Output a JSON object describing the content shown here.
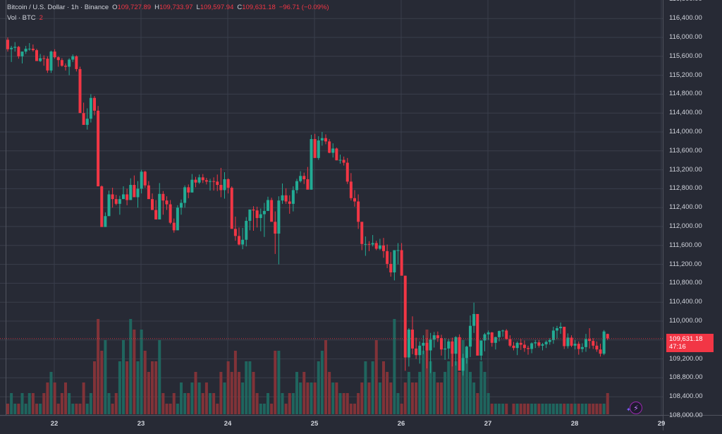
{
  "legend": {
    "symbol": "Bitcoin / U.S. Dollar · 1h · Binance",
    "open_label": "O",
    "open": "109,727.89",
    "high_label": "H",
    "high": "109,733.97",
    "low_label": "L",
    "low": "109,597.94",
    "close_label": "C",
    "close": "109,631.18",
    "change": "−96.71 (−0.09%)",
    "volume_label": "Vol · BTC",
    "volume": "2"
  },
  "price_tag": {
    "price": "109,631.18",
    "countdown": "47:16"
  },
  "colors": {
    "background": "#272a35",
    "grid": "#3a3e4b",
    "up": "#22ab94",
    "down": "#f23645",
    "up_vol": "#1f6b63",
    "down_vol": "#8c3439",
    "axis_text": "#d1d4dc",
    "last_price_line": "#f23645"
  },
  "chart_data": {
    "type": "candlestick",
    "title": "Bitcoin / U.S. Dollar · 1h · Binance",
    "xlabel": "",
    "ylabel": "",
    "y_axis_ticks": [
      "116,800.00",
      "116,400.00",
      "116,000.00",
      "115,600.00",
      "115,200.00",
      "114,800.00",
      "114,400.00",
      "114,000.00",
      "113,600.00",
      "113,200.00",
      "112,800.00",
      "112,400.00",
      "112,000.00",
      "111,600.00",
      "111,200.00",
      "110,800.00",
      "110,400.00",
      "110,000.00",
      "109,200.00",
      "108,800.00",
      "108,400.00",
      "108,000.00"
    ],
    "y_tick_values": [
      116800,
      116400,
      116000,
      115600,
      115200,
      114800,
      114400,
      114000,
      113600,
      113200,
      112800,
      112400,
      112000,
      111600,
      111200,
      110800,
      110400,
      110000,
      109600,
      109200,
      108800,
      108400,
      108000
    ],
    "x_axis_ticks": [
      "22",
      "23",
      "24",
      "25",
      "26",
      "27",
      "28",
      "29"
    ],
    "ylim": [
      108000,
      116800
    ],
    "grid": true,
    "last_price": 109631.18,
    "ohlc_hourly": [
      [
        115950,
        116000,
        115700,
        115750
      ],
      [
        115750,
        115820,
        115480,
        115780
      ],
      [
        115780,
        115900,
        115700,
        115800
      ],
      [
        115800,
        115820,
        115550,
        115600
      ],
      [
        115600,
        115700,
        115450,
        115700
      ],
      [
        115700,
        115820,
        115650,
        115760
      ],
      [
        115760,
        115880,
        115720,
        115760
      ],
      [
        115760,
        115850,
        115700,
        115730
      ],
      [
        115730,
        115760,
        115500,
        115500
      ],
      [
        115500,
        115650,
        115480,
        115560
      ],
      [
        115560,
        115620,
        115400,
        115550
      ],
      [
        115550,
        115600,
        115250,
        115300
      ],
      [
        115300,
        115720,
        115250,
        115700
      ],
      [
        115700,
        115750,
        115550,
        115580
      ],
      [
        115580,
        115600,
        115380,
        115520
      ],
      [
        115520,
        115560,
        115380,
        115400
      ],
      [
        115400,
        115450,
        115300,
        115380
      ],
      [
        115380,
        115560,
        115200,
        115530
      ],
      [
        115530,
        115640,
        115480,
        115600
      ],
      [
        115600,
        115620,
        115280,
        115330
      ],
      [
        115330,
        115380,
        114450,
        114400
      ],
      [
        114400,
        114620,
        114200,
        114150
      ],
      [
        114150,
        114500,
        114050,
        114280
      ],
      [
        114280,
        114800,
        114200,
        114720
      ],
      [
        114720,
        114760,
        114350,
        114450
      ],
      [
        114450,
        114550,
        112950,
        112850
      ],
      [
        112850,
        112870,
        112030,
        111990
      ],
      [
        111990,
        112300,
        112000,
        112220
      ],
      [
        112220,
        112760,
        112350,
        112680
      ],
      [
        112680,
        112820,
        112400,
        112580
      ],
      [
        112580,
        112670,
        112450,
        112480
      ],
      [
        112480,
        112650,
        112250,
        112580
      ],
      [
        112580,
        112850,
        112600,
        112680
      ],
      [
        112680,
        112800,
        112450,
        112560
      ],
      [
        112560,
        113020,
        112620,
        112880
      ],
      [
        112880,
        113080,
        112700,
        112620
      ],
      [
        112620,
        112960,
        112400,
        112800
      ],
      [
        112800,
        113200,
        112700,
        113160
      ],
      [
        113160,
        113180,
        112820,
        112870
      ],
      [
        112870,
        112960,
        112700,
        112580
      ],
      [
        112580,
        112700,
        112380,
        112350
      ],
      [
        112350,
        112560,
        112150,
        112150
      ],
      [
        112150,
        112920,
        112200,
        112690
      ],
      [
        112690,
        112750,
        112250,
        112550
      ],
      [
        112550,
        112640,
        112350,
        112470
      ],
      [
        112470,
        112560,
        112050,
        112080
      ],
      [
        112080,
        112170,
        111870,
        111920
      ],
      [
        111920,
        112450,
        111950,
        112400
      ],
      [
        112400,
        112570,
        112250,
        112500
      ],
      [
        112500,
        112870,
        112400,
        112830
      ],
      [
        112830,
        112890,
        112600,
        112720
      ],
      [
        112720,
        113110,
        112720,
        112990
      ],
      [
        112990,
        113050,
        112830,
        112930
      ],
      [
        112930,
        113100,
        112900,
        113040
      ],
      [
        113040,
        113110,
        112920,
        112980
      ],
      [
        112980,
        113030,
        112890,
        112950
      ],
      [
        112950,
        113010,
        112760,
        112960
      ],
      [
        112960,
        113040,
        112760,
        112950
      ],
      [
        112950,
        113100,
        112750,
        112880
      ],
      [
        112880,
        113240,
        112620,
        112770
      ],
      [
        112770,
        113150,
        112590,
        113000
      ],
      [
        113000,
        113020,
        112700,
        112820
      ],
      [
        112820,
        112850,
        111990,
        111950
      ],
      [
        111950,
        112210,
        111700,
        111800
      ],
      [
        111800,
        111980,
        111600,
        111620
      ],
      [
        111620,
        111970,
        111520,
        111720
      ],
      [
        111720,
        112200,
        111580,
        112120
      ],
      [
        112120,
        112350,
        111920,
        112360
      ],
      [
        112360,
        112430,
        111910,
        112340
      ],
      [
        112340,
        112420,
        111980,
        112180
      ],
      [
        112180,
        112380,
        111900,
        112260
      ],
      [
        112260,
        112500,
        111780,
        112330
      ],
      [
        112330,
        112630,
        112340,
        112560
      ],
      [
        112560,
        112610,
        112120,
        112100
      ],
      [
        112100,
        112320,
        111420,
        111850
      ],
      [
        111850,
        112640,
        111200,
        112550
      ],
      [
        112550,
        112910,
        112480,
        112660
      ],
      [
        112660,
        112810,
        112480,
        112530
      ],
      [
        112530,
        112660,
        112270,
        112480
      ],
      [
        112480,
        112850,
        112320,
        112770
      ],
      [
        112770,
        113010,
        112700,
        112960
      ],
      [
        112960,
        113170,
        112930,
        113070
      ],
      [
        113070,
        113140,
        112900,
        113000
      ],
      [
        113000,
        113260,
        112920,
        112780
      ],
      [
        112780,
        113940,
        112780,
        113850
      ],
      [
        113850,
        113960,
        113480,
        113450
      ],
      [
        113450,
        113910,
        113410,
        113820
      ],
      [
        113820,
        114000,
        113710,
        113870
      ],
      [
        113870,
        113950,
        113740,
        113800
      ],
      [
        113800,
        113850,
        113550,
        113560
      ],
      [
        113560,
        113760,
        113460,
        113650
      ],
      [
        113650,
        113670,
        113400,
        113400
      ],
      [
        113400,
        113520,
        113330,
        113410
      ],
      [
        113410,
        113480,
        113290,
        113350
      ],
      [
        113350,
        113450,
        112900,
        112950
      ],
      [
        112950,
        113130,
        112550,
        112600
      ],
      [
        112600,
        112770,
        112420,
        112530
      ],
      [
        112530,
        112680,
        111950,
        112100
      ],
      [
        112100,
        112050,
        111500,
        111630
      ],
      [
        111630,
        111790,
        111380,
        111630
      ],
      [
        111630,
        111690,
        111480,
        111620
      ],
      [
        111620,
        111820,
        111580,
        111650
      ],
      [
        111650,
        111700,
        111500,
        111530
      ],
      [
        111530,
        111740,
        111500,
        111600
      ],
      [
        111600,
        111760,
        111340,
        111480
      ],
      [
        111480,
        111620,
        111120,
        111210
      ],
      [
        111210,
        111460,
        110940,
        111030
      ],
      [
        111030,
        111460,
        110860,
        111500
      ],
      [
        111500,
        111650,
        111200,
        111500
      ],
      [
        111500,
        111650,
        111330,
        110960
      ],
      [
        110960,
        110960,
        108950,
        109230
      ],
      [
        109230,
        109850,
        109040,
        109820
      ],
      [
        109820,
        110100,
        109300,
        109420
      ],
      [
        109420,
        109650,
        109200,
        109280
      ],
      [
        109280,
        109570,
        109100,
        109480
      ],
      [
        109480,
        109700,
        109300,
        109540
      ],
      [
        109540,
        109640,
        109000,
        109380
      ],
      [
        109380,
        109750,
        108900,
        109610
      ],
      [
        109610,
        109770,
        109440,
        109700
      ],
      [
        109700,
        109780,
        109560,
        109640
      ],
      [
        109640,
        109710,
        109270,
        109400
      ],
      [
        109400,
        109640,
        109180,
        109420
      ],
      [
        109420,
        109620,
        109200,
        109570
      ],
      [
        109570,
        109650,
        109040,
        109310
      ],
      [
        109310,
        109680,
        109060,
        109660
      ],
      [
        109660,
        109720,
        109160,
        108950
      ],
      [
        108950,
        109310,
        108850,
        109220
      ],
      [
        109220,
        109480,
        109100,
        109460
      ],
      [
        109460,
        110120,
        109240,
        109900
      ],
      [
        109900,
        110390,
        109750,
        110150
      ],
      [
        110150,
        110100,
        109530,
        109270
      ],
      [
        109270,
        109500,
        109170,
        109590
      ],
      [
        109590,
        109750,
        109360,
        109720
      ],
      [
        109720,
        109800,
        109600,
        109760
      ],
      [
        109760,
        109770,
        109460,
        109540
      ],
      [
        109540,
        109670,
        109400,
        109660
      ],
      [
        109660,
        109800,
        109570,
        109790
      ],
      [
        109790,
        109820,
        109670,
        109800
      ],
      [
        109800,
        109830,
        109610,
        109620
      ],
      [
        109620,
        109700,
        109450,
        109480
      ],
      [
        109480,
        109560,
        109380,
        109430
      ],
      [
        109430,
        109570,
        109280,
        109540
      ],
      [
        109540,
        109620,
        109390,
        109500
      ],
      [
        109500,
        109590,
        109350,
        109430
      ],
      [
        109430,
        109480,
        109290,
        109410
      ],
      [
        109410,
        109550,
        109320,
        109530
      ],
      [
        109530,
        109600,
        109430,
        109550
      ],
      [
        109550,
        109600,
        109440,
        109480
      ],
      [
        109480,
        109540,
        109380,
        109510
      ],
      [
        109510,
        109590,
        109430,
        109560
      ],
      [
        109560,
        109640,
        109500,
        109600
      ],
      [
        109600,
        109880,
        109520,
        109800
      ],
      [
        109800,
        109900,
        109620,
        109850
      ],
      [
        109850,
        109970,
        109730,
        109880
      ],
      [
        109880,
        109870,
        109410,
        109470
      ],
      [
        109470,
        109740,
        109420,
        109650
      ],
      [
        109650,
        109700,
        109450,
        109480
      ],
      [
        109480,
        109600,
        109400,
        109520
      ],
      [
        109520,
        109570,
        109290,
        109410
      ],
      [
        109410,
        109530,
        109340,
        109450
      ],
      [
        109450,
        109730,
        109350,
        109620
      ],
      [
        109620,
        109850,
        109420,
        109580
      ],
      [
        109580,
        109640,
        109410,
        109480
      ],
      [
        109480,
        109570,
        109350,
        109400
      ],
      [
        109400,
        109520,
        109250,
        109310
      ],
      [
        109310,
        109810,
        109280,
        109780
      ],
      [
        109727.89,
        109733.97,
        109597.94,
        109631.18
      ]
    ],
    "volume_hourly": [
      1,
      2,
      1,
      1,
      2,
      1,
      2,
      2,
      1,
      1,
      2,
      3,
      4,
      3,
      1,
      2,
      3,
      2,
      1,
      1,
      1,
      3,
      1,
      2,
      5,
      9,
      6,
      7,
      2,
      1,
      2,
      5,
      7,
      5,
      9,
      8,
      5,
      8,
      6,
      4,
      5,
      5,
      7,
      2,
      1,
      1,
      2,
      1,
      3,
      2,
      2,
      3,
      4,
      3,
      2,
      3,
      2,
      2,
      1,
      4,
      3,
      5,
      4,
      6,
      4,
      3,
      5,
      5,
      4,
      2,
      1,
      1,
      2,
      1,
      6,
      6,
      2,
      1,
      2,
      2,
      4,
      3,
      4,
      3,
      3,
      3,
      5,
      6,
      7,
      4,
      3,
      3,
      2,
      2,
      2,
      1,
      1,
      2,
      3,
      5,
      3,
      5,
      7,
      3,
      5,
      4,
      3,
      9,
      2,
      1,
      3,
      4,
      3,
      3,
      4,
      6,
      8,
      5,
      4,
      3,
      3,
      4,
      5,
      6,
      5,
      4,
      7,
      6,
      4,
      3,
      2,
      5,
      4,
      2,
      1,
      1,
      1,
      1,
      1,
      0,
      1,
      1,
      1,
      1,
      1,
      1,
      1,
      1,
      1,
      1,
      1,
      1,
      1,
      1,
      1,
      1,
      1,
      1,
      1,
      1,
      1,
      1,
      1,
      1,
      1,
      1,
      2,
      1,
      1,
      1,
      1,
      2,
      1,
      1,
      1
    ],
    "volume_direction_note": "bars colored by candle direction"
  }
}
